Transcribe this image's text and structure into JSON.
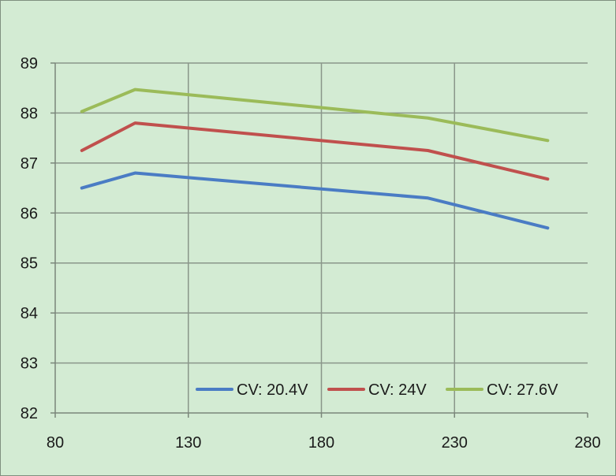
{
  "chart_data": {
    "type": "line",
    "title": "",
    "xlabel": "",
    "ylabel": "",
    "xlim": [
      80,
      280
    ],
    "ylim": [
      82,
      89
    ],
    "x_ticks": [
      80,
      130,
      180,
      230,
      280
    ],
    "y_ticks": [
      82,
      83,
      84,
      85,
      86,
      87,
      88,
      89
    ],
    "grid": true,
    "legend_position": "bottom-right",
    "series": [
      {
        "name": "CV: 20.4V",
        "color": "#4a7cc4",
        "x": [
          90,
          110,
          220,
          265
        ],
        "y": [
          86.5,
          86.8,
          86.3,
          85.7
        ]
      },
      {
        "name": "CV: 24V",
        "color": "#c0504d",
        "x": [
          90,
          110,
          220,
          265
        ],
        "y": [
          87.25,
          87.8,
          87.25,
          86.68
        ]
      },
      {
        "name": "CV: 27.6V",
        "color": "#9bbb59",
        "x": [
          90,
          110,
          220,
          265
        ],
        "y": [
          88.03,
          88.47,
          87.9,
          87.45
        ]
      }
    ]
  }
}
